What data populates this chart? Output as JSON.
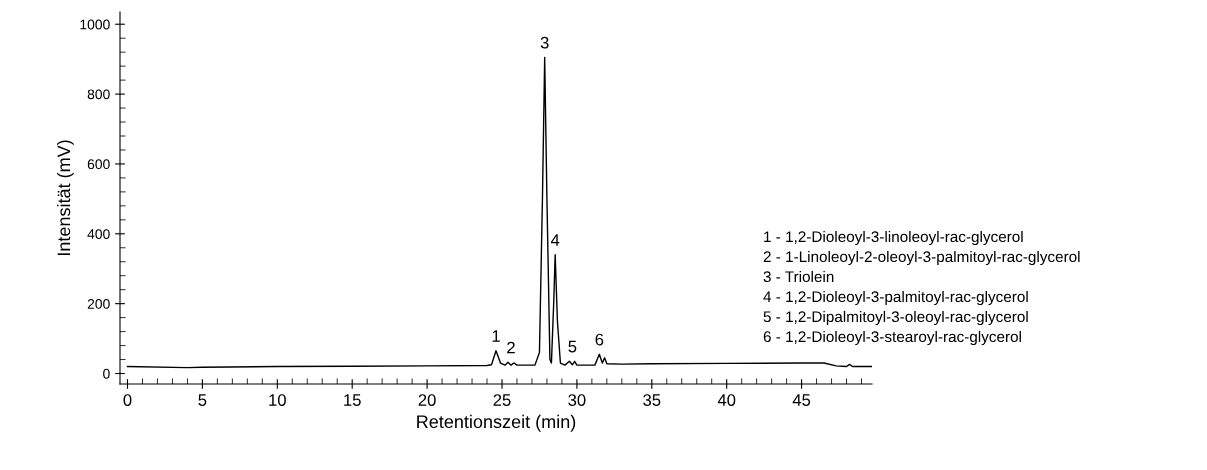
{
  "chart_data": {
    "type": "line",
    "xlabel": "Retentionszeit (min)",
    "ylabel": "Intensität (mV)",
    "x": [
      0,
      4,
      5,
      10,
      15,
      20,
      24,
      24.3,
      24.6,
      24.9,
      25.2,
      25.4,
      25.6,
      25.8,
      26,
      27.2,
      27.5,
      27.7,
      27.85,
      28.0,
      28.2,
      28.3,
      28.45,
      28.55,
      28.7,
      28.9,
      29.2,
      29.5,
      29.7,
      29.85,
      30,
      31.2,
      31.5,
      31.7,
      31.85,
      32,
      33,
      35,
      40,
      45,
      46.5,
      47.3,
      48,
      48.2,
      48.4,
      49.7
    ],
    "series": [
      {
        "color": "#000000",
        "values": [
          20,
          17,
          18,
          20,
          21,
          22,
          23,
          25,
          65,
          30,
          24,
          32,
          24,
          30,
          24,
          24,
          60,
          500,
          905,
          500,
          40,
          30,
          200,
          340,
          150,
          30,
          24,
          35,
          25,
          35,
          24,
          24,
          55,
          30,
          45,
          28,
          27,
          28,
          29,
          30,
          30,
          22,
          20,
          26,
          20,
          20
        ]
      }
    ],
    "xlim": [
      -0.5,
      49.7
    ],
    "ylim": [
      -30,
      1035
    ],
    "xticks": [
      0,
      5,
      10,
      15,
      20,
      25,
      30,
      35,
      40,
      45
    ],
    "yticks": [
      0,
      200,
      400,
      600,
      800,
      1000
    ],
    "grid": false,
    "legend": false,
    "marker": "none",
    "line_style": "solid",
    "annotations": [
      {
        "text": "1",
        "x": 24.6,
        "y": 65
      },
      {
        "text": "2",
        "x": 25.6,
        "y": 32
      },
      {
        "text": "3",
        "x": 27.85,
        "y": 905
      },
      {
        "text": "4",
        "x": 28.55,
        "y": 340
      },
      {
        "text": "5",
        "x": 29.7,
        "y": 35
      },
      {
        "text": "6",
        "x": 31.5,
        "y": 55
      },
      "1 - 1,2-Dioleoyl-3-linoleoyl-rac-glycerol",
      "2 - 1-Linoleoyl-2-oleoyl-3-palmitoyl-rac-glycerol",
      "3 - Triolein",
      "4 - 1,2-Dioleoyl-3-palmitoyl-rac-glycerol",
      "5 - 1,2-Dipalmitoyl-3-oleoyl-rac-glycerol",
      "6 - 1,2-Dioleoyl-3-stearoyl-rac-glycerol"
    ]
  }
}
